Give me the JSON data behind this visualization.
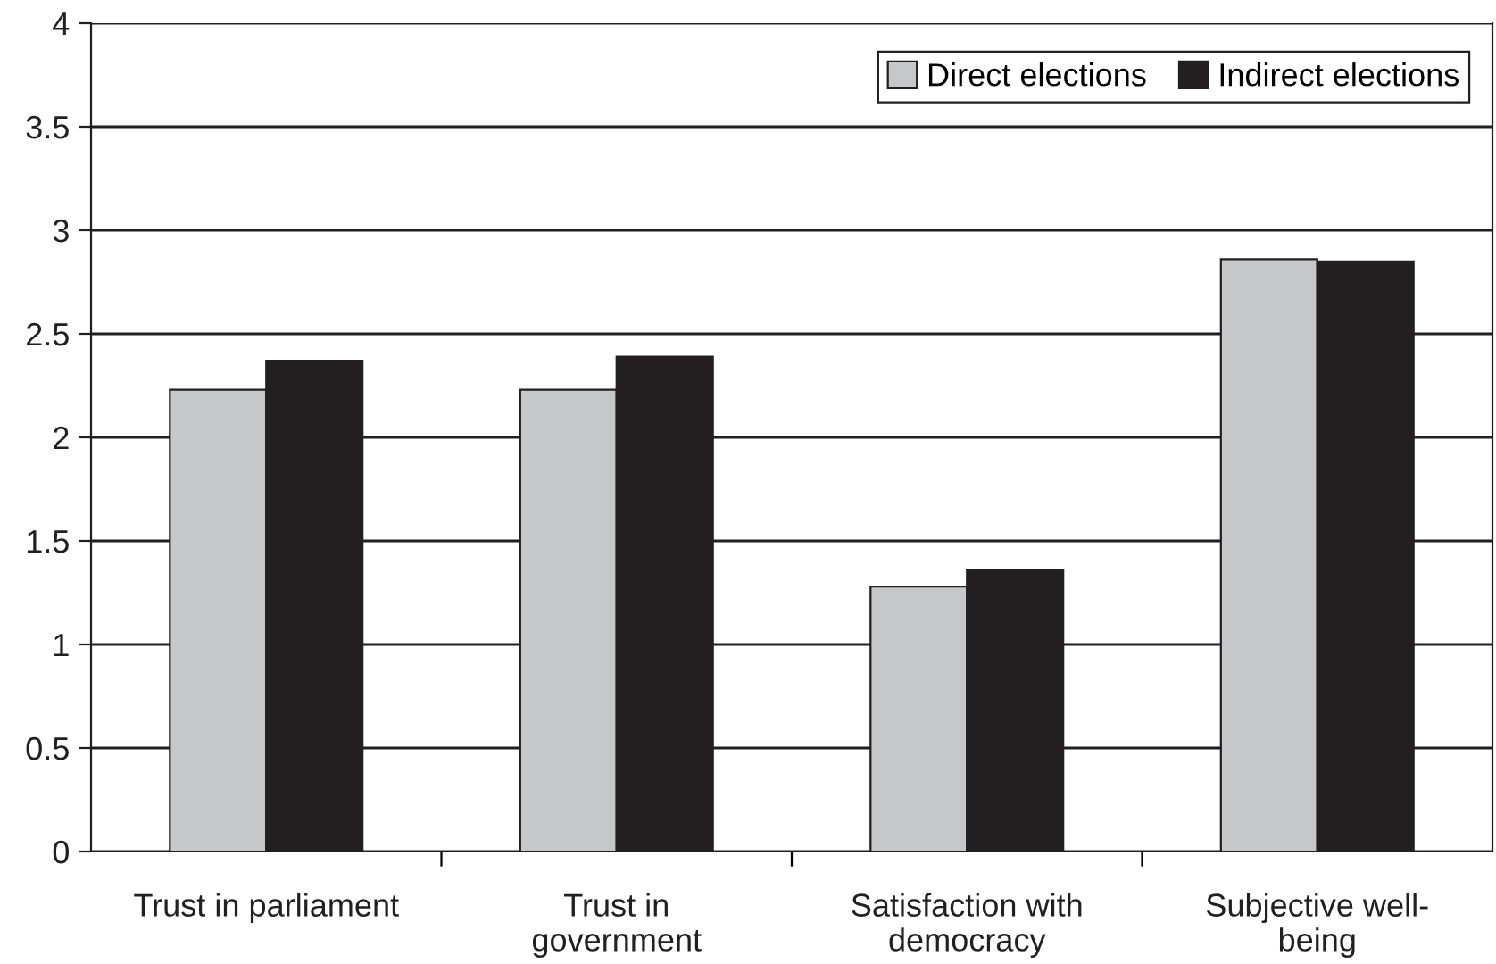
{
  "chart_data": {
    "type": "bar",
    "categories": [
      "Trust in parliament",
      "Trust in\ngovernment",
      "Satisfaction with\ndemocracy",
      "Subjective well-\nbeing"
    ],
    "series": [
      {
        "name": "Direct elections",
        "color": "#c6c7c9",
        "values": [
          2.23,
          2.23,
          1.28,
          2.86
        ]
      },
      {
        "name": "Indirect elections",
        "color": "#231f20",
        "values": [
          2.37,
          2.39,
          1.36,
          2.85
        ]
      }
    ],
    "ylim": [
      0,
      4
    ],
    "yticks": [
      0,
      0.5,
      1,
      1.5,
      2,
      2.5,
      3,
      3.5,
      4
    ],
    "grid": "y",
    "legend": "top right"
  }
}
